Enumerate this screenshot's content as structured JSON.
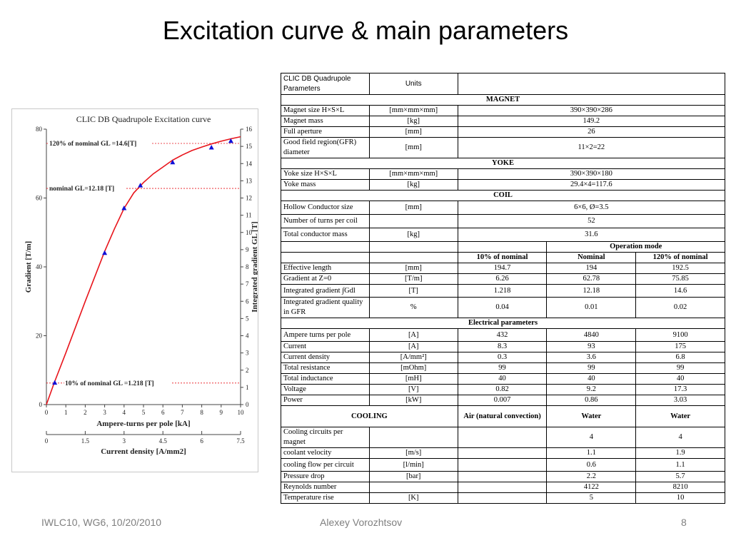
{
  "slide": {
    "title": "Excitation curve & main parameters",
    "footer_left": "IWLC10, WG6, 10/20/2010",
    "footer_center": "Alexey Vorozhtsov",
    "footer_right": "8"
  },
  "chart_data": {
    "type": "line",
    "title": "CLIC DB Quadrupole Excitation curve",
    "xlabel": "Ampere-turns per pole [kA]",
    "x2label": "Current density [A/mm2]",
    "ylabel": "Gradient [T/m]",
    "y2label": "Integrated gradient GL [T]",
    "xlim": [
      0,
      10
    ],
    "ylim": [
      0,
      80
    ],
    "y2lim": [
      0,
      16
    ],
    "x2lim": [
      0,
      7.5
    ],
    "x_ticks": [
      "0",
      "1",
      "2",
      "3",
      "4",
      "5",
      "6",
      "7",
      "8",
      "9",
      "10"
    ],
    "x2_ticks": [
      "0",
      "1.5",
      "3",
      "4.5",
      "6",
      "7.5"
    ],
    "y_ticks": [
      "0",
      "20",
      "40",
      "60",
      "80"
    ],
    "y2_ticks": [
      "0",
      "1",
      "2",
      "3",
      "4",
      "5",
      "6",
      "7",
      "8",
      "9",
      "10",
      "11",
      "12",
      "13",
      "14",
      "15",
      "16"
    ],
    "colors": {
      "curve": "#e8141b",
      "markers": "#1010d8",
      "ref_lines": "#e8141b"
    },
    "series": [
      {
        "curve_x": [
          0,
          0.4,
          1,
          2,
          3,
          3.5,
          4,
          4.5,
          5,
          5.5,
          6,
          6.5,
          7,
          7.5,
          8,
          8.5,
          9,
          9.5,
          10
        ],
        "curve_y": [
          0,
          6.3,
          15,
          30,
          44.5,
          51,
          57,
          61.5,
          64.5,
          67,
          69,
          71,
          72.5,
          73.8,
          74.8,
          75.7,
          76.5,
          77.2,
          77.8
        ],
        "points_x": [
          0.43,
          3,
          4,
          4.84,
          6.5,
          8.5,
          9.5
        ],
        "points_y": [
          6.3,
          44,
          57,
          63.6,
          70.3,
          74.6,
          76.5
        ]
      }
    ],
    "annotations": [
      {
        "text": "120% of nominal GL =14.6[T]",
        "y": 75.85
      },
      {
        "text": "nominal GL=12.18 [T]",
        "y": 62.78
      },
      {
        "text": "10% of nominal GL =1.218 [T]",
        "y": 6.26
      }
    ]
  },
  "table": {
    "head": {
      "param": "CLIC DB Quadrupole Parameters",
      "units": "Units"
    },
    "magnet_section": "MAGNET",
    "magnet_rows": [
      {
        "param": "Magnet size H×S×L",
        "units": "[mm×mm×mm]",
        "value": "390×390×286"
      },
      {
        "param": "Magnet mass",
        "units": "[kg]",
        "value": "149.2"
      },
      {
        "param": "Full aperture",
        "units": "[mm]",
        "value": "26"
      },
      {
        "param": "Good field region(GFR) diameter",
        "units": "[mm]",
        "value": "11×2=22"
      }
    ],
    "yoke_section": "YOKE",
    "yoke_rows": [
      {
        "param": "Yoke size H×S×L",
        "units": "[mm×mm×mm]",
        "value": "390×390×180"
      },
      {
        "param": "Yoke mass",
        "units": "[kg]",
        "value": "29.4×4=117.6"
      }
    ],
    "coil_section": "COIL",
    "coil_rows": [
      {
        "param": "Hollow Conductor size",
        "units": "[mm]",
        "value": "6×6, Ø=3.5"
      },
      {
        "param": "Number of turns per coil",
        "units": "",
        "value": "52"
      },
      {
        "param": "Total conductor mass",
        "units": "[kg]",
        "value": "31.6"
      }
    ],
    "op_mode": "Operation mode",
    "op_cols": [
      "10% of nominal",
      "Nominal",
      "120% of nominal"
    ],
    "op_rows": [
      {
        "param": "Effective length",
        "units": "[mm]",
        "v": [
          "194.7",
          "194",
          "192.5"
        ]
      },
      {
        "param": "Gradient at Z=0",
        "units": "[T/m]",
        "v": [
          "6.26",
          "62.78",
          "75.85"
        ]
      },
      {
        "param": "Integrated gradient ∫Gdl",
        "units": "[T]",
        "v": [
          "1.218",
          "12.18",
          "14.6"
        ]
      },
      {
        "param": "Integrated gradient quality in GFR",
        "units": "%",
        "v": [
          "0.04",
          "0.01",
          "0.02"
        ]
      }
    ],
    "elec_section": "Electrical parameters",
    "elec_rows": [
      {
        "param": "Ampere turns per pole",
        "units": "[A]",
        "v": [
          "432",
          "4840",
          "9100"
        ]
      },
      {
        "param": "Current",
        "units": "[A]",
        "v": [
          "8.3",
          "93",
          "175"
        ]
      },
      {
        "param": "Current density",
        "units": "[A/mm²]",
        "v": [
          "0.3",
          "3.6",
          "6.8"
        ]
      },
      {
        "param": "Total resistance",
        "units": "[mOhm]",
        "v": [
          "99",
          "99",
          "99"
        ]
      },
      {
        "param": "Total inductance",
        "units": "[mH]",
        "v": [
          "40",
          "40",
          "40"
        ]
      },
      {
        "param": "Voltage",
        "units": "[V]",
        "v": [
          "0.82",
          "9.2",
          "17.3"
        ]
      },
      {
        "param": "Power",
        "units": "[kW]",
        "v": [
          "0.007",
          "0.86",
          "3.03"
        ]
      }
    ],
    "cooling_header": {
      "label": "COOLING",
      "v": [
        "Air (natural convection)",
        "Water",
        "Water"
      ]
    },
    "cooling_rows": [
      {
        "param": "Cooling circuits per magnet",
        "units": "",
        "v": [
          "",
          "4",
          "4"
        ]
      },
      {
        "param": "coolant velocity",
        "units": "[m/s]",
        "v": [
          "",
          "1.1",
          "1.9"
        ]
      },
      {
        "param": "cooling flow per circuit",
        "units": "[l/min]",
        "v": [
          "",
          "0.6",
          "1.1"
        ]
      },
      {
        "param": "Pressure drop",
        "units": "[bar]",
        "v": [
          "",
          "2.2",
          "5.7"
        ]
      },
      {
        "param": "Reynolds number",
        "units": "",
        "v": [
          "",
          "4122",
          "8210"
        ]
      },
      {
        "param": "Temperature rise",
        "units": "[K]",
        "v": [
          "",
          "5",
          "10"
        ]
      }
    ]
  }
}
